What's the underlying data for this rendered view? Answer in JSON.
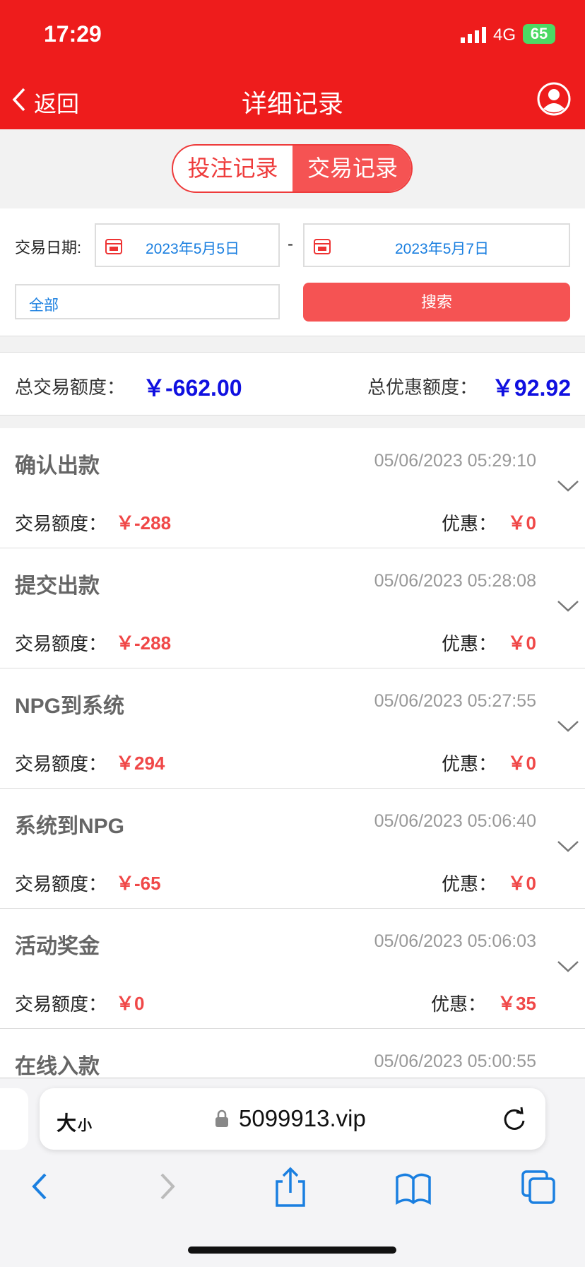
{
  "status_bar": {
    "time": "17:29",
    "network": "4G",
    "battery": "65"
  },
  "nav": {
    "back": "返回",
    "title": "详细记录"
  },
  "tabs": [
    "投注记录",
    "交易记录"
  ],
  "filter": {
    "date_label": "交易日期:",
    "start_date": "2023年5月5日",
    "separator": "-",
    "end_date": "2023年5月7日",
    "type": "全部",
    "search": "搜索"
  },
  "summary": {
    "total_label": "总交易额度：",
    "total_value": "￥-662.00",
    "discount_label": "总优惠额度：",
    "discount_value": "￥92.92"
  },
  "records": [
    {
      "title": "确认出款",
      "time": "05/06/2023 05:29:10",
      "amount_label": "交易额度：",
      "amount": "￥-288",
      "discount_label": "优惠：",
      "discount": "￥0"
    },
    {
      "title": "提交出款",
      "time": "05/06/2023 05:28:08",
      "amount_label": "交易额度：",
      "amount": "￥-288",
      "discount_label": "优惠：",
      "discount": "￥0"
    },
    {
      "title": "NPG到系统",
      "time": "05/06/2023 05:27:55",
      "amount_label": "交易额度：",
      "amount": "￥294",
      "discount_label": "优惠：",
      "discount": "￥0"
    },
    {
      "title": "系统到NPG",
      "time": "05/06/2023 05:06:40",
      "amount_label": "交易额度：",
      "amount": "￥-65",
      "discount_label": "优惠：",
      "discount": "￥0"
    },
    {
      "title": "活动奖金",
      "time": "05/06/2023 05:06:03",
      "amount_label": "交易额度：",
      "amount": "￥0",
      "discount_label": "优惠：",
      "discount": "￥35"
    },
    {
      "title": "在线入款",
      "time": "05/06/2023 05:00:55"
    }
  ],
  "browser": {
    "text_size_large": "大",
    "text_size_small": "小",
    "url": "5099913.vip"
  }
}
